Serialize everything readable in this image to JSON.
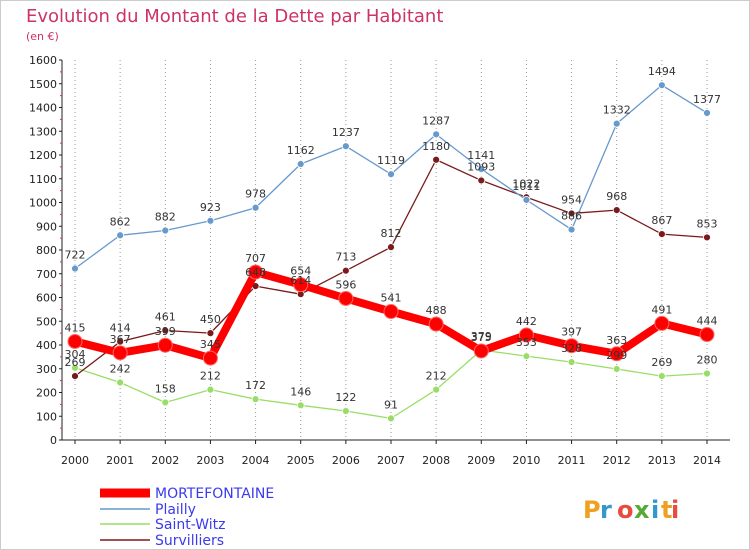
{
  "header": {
    "title": "Evolution du Montant de la Dette par Habitant",
    "unit": "(en €)"
  },
  "chart_data": {
    "type": "line",
    "title": "Evolution du Montant de la Dette par Habitant",
    "subtitle": "(en €)",
    "xlabel": "",
    "ylabel": "",
    "categories": [
      "2000",
      "2001",
      "2002",
      "2003",
      "2004",
      "2005",
      "2006",
      "2007",
      "2008",
      "2009",
      "2010",
      "2011",
      "2012",
      "2013",
      "2014"
    ],
    "ylim": [
      0,
      1600
    ],
    "yticks": [
      0,
      100,
      200,
      300,
      400,
      500,
      600,
      700,
      800,
      900,
      1000,
      1100,
      1200,
      1300,
      1400,
      1500,
      1600
    ],
    "grid": "vertical",
    "legend_position": "bottom-left",
    "series": [
      {
        "name": "MORTEFONTAINE",
        "color": "#ff0000",
        "values": [
          415,
          367,
          399,
          345,
          707,
          654,
          596,
          541,
          488,
          375,
          442,
          397,
          363,
          491,
          444
        ]
      },
      {
        "name": "Plailly",
        "color": "#6699cc",
        "values": [
          722,
          862,
          882,
          923,
          978,
          1162,
          1237,
          1119,
          1287,
          1141,
          1011,
          886,
          1332,
          1494,
          1377
        ]
      },
      {
        "name": "Saint-Witz",
        "color": "#99dd66",
        "values": [
          304,
          242,
          158,
          212,
          172,
          146,
          122,
          91,
          212,
          379,
          353,
          328,
          299,
          269,
          280
        ]
      },
      {
        "name": "Survilliers",
        "color": "#7a1a1a",
        "values": [
          269,
          414,
          461,
          450,
          648,
          614,
          713,
          812,
          1180,
          1093,
          1022,
          954,
          968,
          867,
          853
        ]
      }
    ]
  },
  "legend": [
    {
      "label": "MORTEFONTAINE"
    },
    {
      "label": "Plailly"
    },
    {
      "label": "Saint-Witz"
    },
    {
      "label": "Survilliers"
    }
  ],
  "logo": {
    "text": "Proxiti"
  }
}
